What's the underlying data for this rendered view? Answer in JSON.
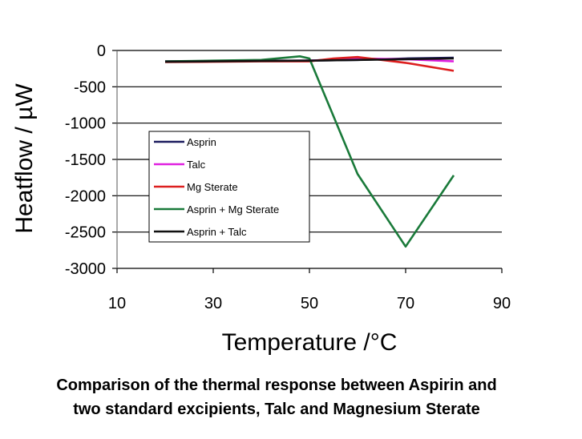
{
  "chart_data": {
    "type": "line",
    "xlabel": "Temperature /°C",
    "ylabel": "Heatflow / µW",
    "xlim": [
      10,
      90
    ],
    "ylim": [
      -3000,
      0
    ],
    "x_ticks": [
      10,
      30,
      50,
      70,
      90
    ],
    "y_ticks": [
      0,
      -500,
      -1000,
      -1500,
      -2000,
      -2500,
      -3000
    ],
    "grid": "horizontal",
    "legend_position": "center-left",
    "series": [
      {
        "name": "Asprin",
        "color": "#1c1c5e",
        "x": [
          20,
          30,
          40,
          50,
          60,
          70,
          80
        ],
        "y": [
          -150,
          -145,
          -140,
          -140,
          -130,
          -110,
          -100
        ]
      },
      {
        "name": "Talc",
        "color": "#e020e0",
        "x": [
          20,
          30,
          40,
          50,
          60,
          70,
          80
        ],
        "y": [
          -150,
          -150,
          -145,
          -140,
          -110,
          -120,
          -150
        ]
      },
      {
        "name": "Mg Sterate",
        "color": "#dd1f1f",
        "x": [
          20,
          30,
          40,
          50,
          55,
          60,
          70,
          80
        ],
        "y": [
          -160,
          -155,
          -150,
          -150,
          -110,
          -90,
          -170,
          -280
        ]
      },
      {
        "name": "Asprin + Mg Sterate",
        "color": "#1a7a3a",
        "x": [
          20,
          30,
          40,
          48,
          50,
          60,
          70,
          80
        ],
        "y": [
          -150,
          -140,
          -130,
          -80,
          -110,
          -1700,
          -2700,
          -1720
        ]
      },
      {
        "name": "Asprin + Talc",
        "color": "#111111",
        "x": [
          20,
          30,
          40,
          50,
          60,
          70,
          80
        ],
        "y": [
          -155,
          -150,
          -145,
          -140,
          -130,
          -120,
          -110
        ]
      }
    ]
  },
  "caption": {
    "line1": "Comparison of the thermal response between Aspirin and",
    "line2": "two standard excipients, Talc and Magnesium Sterate"
  }
}
